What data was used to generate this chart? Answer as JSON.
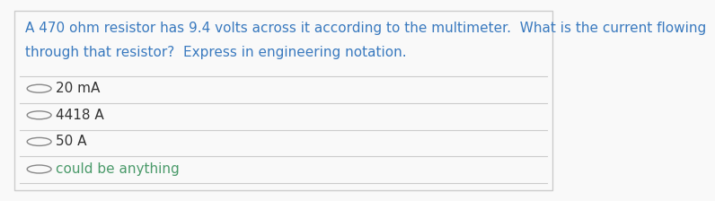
{
  "question_line1": "A 470 ohm resistor has 9.4 volts across it according to the multimeter.  What is the current flowing",
  "question_line2": "through that resistor?  Express in engineering notation.",
  "choices": [
    "20 mA",
    "4418 A",
    "50 A",
    "could be anything"
  ],
  "question_color": "#3a7abf",
  "choice_color_default": "#333333",
  "choice_color_special": "#4a9a6a",
  "bg_color": "#f9f9f9",
  "border_color": "#cccccc",
  "divider_color": "#cccccc",
  "circle_color": "#888888",
  "fig_width": 7.89,
  "fig_height": 2.65,
  "question_fontsize": 11.0,
  "choice_fontsize": 11.0
}
